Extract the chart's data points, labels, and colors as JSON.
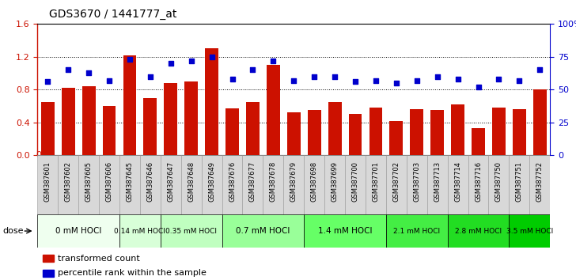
{
  "title": "GDS3670 / 1441777_at",
  "samples": [
    "GSM387601",
    "GSM387602",
    "GSM387605",
    "GSM387606",
    "GSM387645",
    "GSM387646",
    "GSM387647",
    "GSM387648",
    "GSM387649",
    "GSM387676",
    "GSM387677",
    "GSM387678",
    "GSM387679",
    "GSM387698",
    "GSM387699",
    "GSM387700",
    "GSM387701",
    "GSM387702",
    "GSM387703",
    "GSM387713",
    "GSM387714",
    "GSM387716",
    "GSM387750",
    "GSM387751",
    "GSM387752"
  ],
  "bar_values": [
    0.65,
    0.82,
    0.84,
    0.6,
    1.22,
    0.7,
    0.88,
    0.9,
    1.3,
    0.57,
    0.65,
    1.1,
    0.52,
    0.55,
    0.65,
    0.5,
    0.58,
    0.42,
    0.56,
    0.55,
    0.62,
    0.33,
    0.58,
    0.56,
    0.8
  ],
  "percentile_values": [
    56,
    65,
    63,
    57,
    73,
    60,
    70,
    72,
    75,
    58,
    65,
    72,
    57,
    60,
    60,
    56,
    57,
    55,
    57,
    60,
    58,
    52,
    58,
    57,
    65
  ],
  "dose_groups": [
    {
      "label": "0 mM HOCl",
      "start": 0,
      "end": 4,
      "color": "#efffef"
    },
    {
      "label": "0.14 mM HOCl",
      "start": 4,
      "end": 6,
      "color": "#d8ffd8"
    },
    {
      "label": "0.35 mM HOCl",
      "start": 6,
      "end": 9,
      "color": "#c0ffc0"
    },
    {
      "label": "0.7 mM HOCl",
      "start": 9,
      "end": 13,
      "color": "#99ff99"
    },
    {
      "label": "1.4 mM HOCl",
      "start": 13,
      "end": 17,
      "color": "#66ff66"
    },
    {
      "label": "2.1 mM HOCl",
      "start": 17,
      "end": 20,
      "color": "#44ee44"
    },
    {
      "label": "2.8 mM HOCl",
      "start": 20,
      "end": 23,
      "color": "#22dd22"
    },
    {
      "label": "3.5 mM HOCl",
      "start": 23,
      "end": 25,
      "color": "#00cc00"
    }
  ],
  "bar_color": "#cc1100",
  "dot_color": "#0000cc",
  "ylim_left": [
    0,
    1.6
  ],
  "ylim_right": [
    0,
    100
  ],
  "yticks_left": [
    0,
    0.4,
    0.8,
    1.2,
    1.6
  ],
  "yticks_right": [
    0,
    25,
    50,
    75,
    100
  ],
  "legend_transformed": "transformed count",
  "legend_percentile": "percentile rank within the sample",
  "dose_label": "dose",
  "bg_color": "#ffffff",
  "title_fontsize": 10,
  "tick_fontsize": 6,
  "dose_fontsize": 7,
  "sample_bg_color": "#d8d8d8",
  "sample_border_color": "#999999"
}
